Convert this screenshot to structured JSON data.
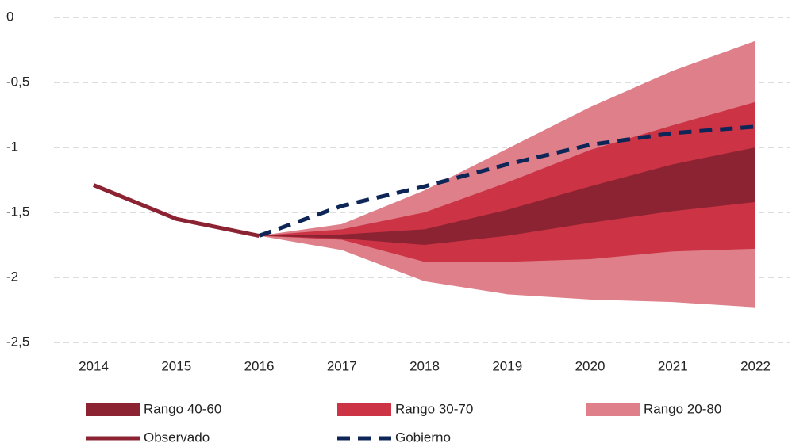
{
  "chart_data": {
    "type": "fan",
    "categories": [
      "2014",
      "2015",
      "2016",
      "2017",
      "2018",
      "2019",
      "2020",
      "2021",
      "2022"
    ],
    "ylim": [
      -2.5,
      0
    ],
    "yticks": [
      0,
      {
        "value": -0.5,
        "label": "-0,5"
      },
      -1,
      {
        "value": -1.5,
        "label": "-1,5"
      },
      -2,
      {
        "value": -2.5,
        "label": "-2,5"
      }
    ],
    "grid": true,
    "series": [
      {
        "name": "Rango 40-60",
        "type": "band",
        "color": "#8b2332",
        "lower": [
          null,
          null,
          -1.68,
          -1.7,
          -1.75,
          -1.68,
          -1.58,
          -1.49,
          -1.42
        ],
        "upper": [
          null,
          null,
          -1.68,
          -1.67,
          -1.63,
          -1.48,
          -1.3,
          -1.13,
          -1.0
        ]
      },
      {
        "name": "Rango 30-70",
        "type": "band",
        "color": "#cc3345",
        "lower": [
          null,
          null,
          -1.68,
          -1.71,
          -1.88,
          -1.88,
          -1.86,
          -1.8,
          -1.78
        ],
        "upper": [
          null,
          null,
          -1.68,
          -1.63,
          -1.5,
          -1.27,
          -1.02,
          -0.83,
          -0.65
        ]
      },
      {
        "name": "Rango 20-80",
        "type": "band",
        "color": "#de7f8a",
        "lower": [
          null,
          null,
          -1.68,
          -1.79,
          -2.03,
          -2.13,
          -2.17,
          -2.19,
          -2.23
        ],
        "upper": [
          null,
          null,
          -1.68,
          -1.59,
          -1.33,
          -1.01,
          -0.69,
          -0.41,
          -0.18
        ]
      },
      {
        "name": "Observado",
        "type": "line",
        "color": "#8b2332",
        "values": [
          -1.29,
          -1.55,
          -1.68,
          null,
          null,
          null,
          null,
          null,
          null
        ]
      },
      {
        "name": "Gobierno",
        "type": "dashed",
        "color": "#0d2557",
        "values": [
          null,
          null,
          -1.68,
          -1.45,
          -1.3,
          -1.13,
          -0.98,
          -0.89,
          -0.84
        ]
      }
    ]
  }
}
